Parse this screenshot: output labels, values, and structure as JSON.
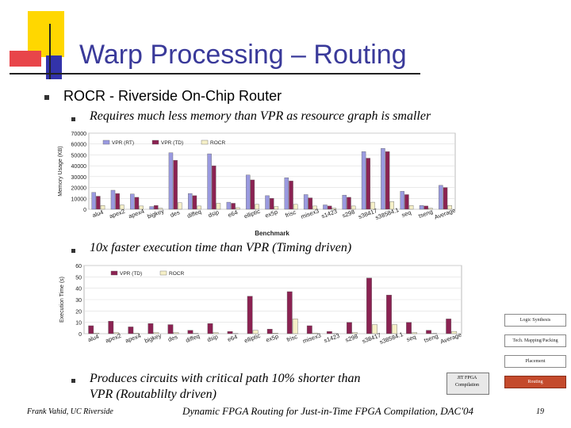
{
  "slide": {
    "title": "Warp Processing – Routing",
    "bullet1": "ROCR - Riverside On-Chip Router",
    "sub1": "Requires much less memory than VPR as resource graph is smaller",
    "sub2": "10x faster execution time than VPR (Timing driven)",
    "sub3_line1": "Produces circuits with critical path 10% shorter than",
    "sub3_line2": "VPR (Routablilty driven)",
    "footer_left": "Frank Vahid, UC Riverside",
    "footer_center": "Dynamic FPGA Routing for Just-in-Time FPGA Compilation, DAC'04",
    "page_number": "19"
  },
  "flow": {
    "logic_synthesis": "Logic Synthesis",
    "tech_mapping": "Tech. Mapping/Packing",
    "placement": "Placement",
    "routing": "Routing",
    "jit_fpga": "JIT FPGA Compilation"
  },
  "colors": {
    "title": "#3a3a9a",
    "vpr_rt": "#9a9ae0",
    "vpr_td": "#8b2252",
    "rocr": "#f6f0c8",
    "routing_box": "#c44a2c",
    "deco_yellow": "#ffd700",
    "deco_red": "#e8454a",
    "deco_blue": "#3333aa"
  },
  "chart_data": [
    {
      "type": "bar",
      "title": "",
      "xlabel": "Benchmark",
      "ylabel": "Memory Usage (KB)",
      "ylim": [
        0,
        70000
      ],
      "yticks": [
        "0",
        "10000",
        "20000",
        "30000",
        "40000",
        "50000",
        "60000",
        "70000"
      ],
      "legend_position": "top",
      "categories": [
        "alu4",
        "apex2",
        "apex4",
        "bigkey",
        "des",
        "diffeq",
        "dsip",
        "e64",
        "elliptic",
        "ex5p",
        "frisc",
        "misex3",
        "s1423",
        "s298",
        "s38417",
        "s38584.1",
        "seq",
        "tseng",
        "Average"
      ],
      "series": [
        {
          "name": "VPR (RT)",
          "values": [
            15500,
            17500,
            14000,
            2500,
            52000,
            14500,
            51000,
            6500,
            31500,
            12500,
            29000,
            13500,
            4000,
            13000,
            53000,
            56000,
            16500,
            3500,
            22000
          ]
        },
        {
          "name": "VPR (TD)",
          "values": [
            12000,
            14500,
            11000,
            3500,
            45000,
            12500,
            40000,
            5500,
            27000,
            10000,
            26000,
            10500,
            3000,
            11000,
            47000,
            53000,
            13500,
            3000,
            20000
          ]
        },
        {
          "name": "ROCR",
          "values": [
            3500,
            4000,
            3000,
            1000,
            6000,
            3000,
            5500,
            1500,
            4500,
            2500,
            4500,
            3000,
            1000,
            3000,
            6500,
            7000,
            3500,
            1000,
            3500
          ]
        }
      ]
    },
    {
      "type": "bar",
      "title": "",
      "xlabel": "",
      "ylabel": "Execution Time (s)",
      "ylim": [
        0,
        60
      ],
      "yticks": [
        "0",
        "10",
        "20",
        "30",
        "40",
        "50",
        "60"
      ],
      "legend_position": "top",
      "categories": [
        "alu4",
        "apex2",
        "apex4",
        "bigkey",
        "des",
        "diffeq",
        "dsip",
        "e64",
        "elliptic",
        "ex5p",
        "frisc",
        "misex3",
        "s1423",
        "s298",
        "s38417",
        "s38584.1",
        "seq",
        "tseng",
        "Average"
      ],
      "series": [
        {
          "name": "VPR (TD)",
          "values": [
            7,
            11,
            6,
            9,
            8,
            3,
            9,
            2,
            33,
            4,
            37,
            7,
            2,
            10,
            49,
            34,
            10,
            3,
            13
          ]
        },
        {
          "name": "ROCR",
          "values": [
            0.5,
            1,
            0.5,
            1,
            1,
            0.3,
            1,
            0.2,
            3,
            0.5,
            13,
            0.6,
            0.2,
            1,
            8,
            8,
            1,
            0.3,
            2
          ]
        }
      ]
    }
  ]
}
